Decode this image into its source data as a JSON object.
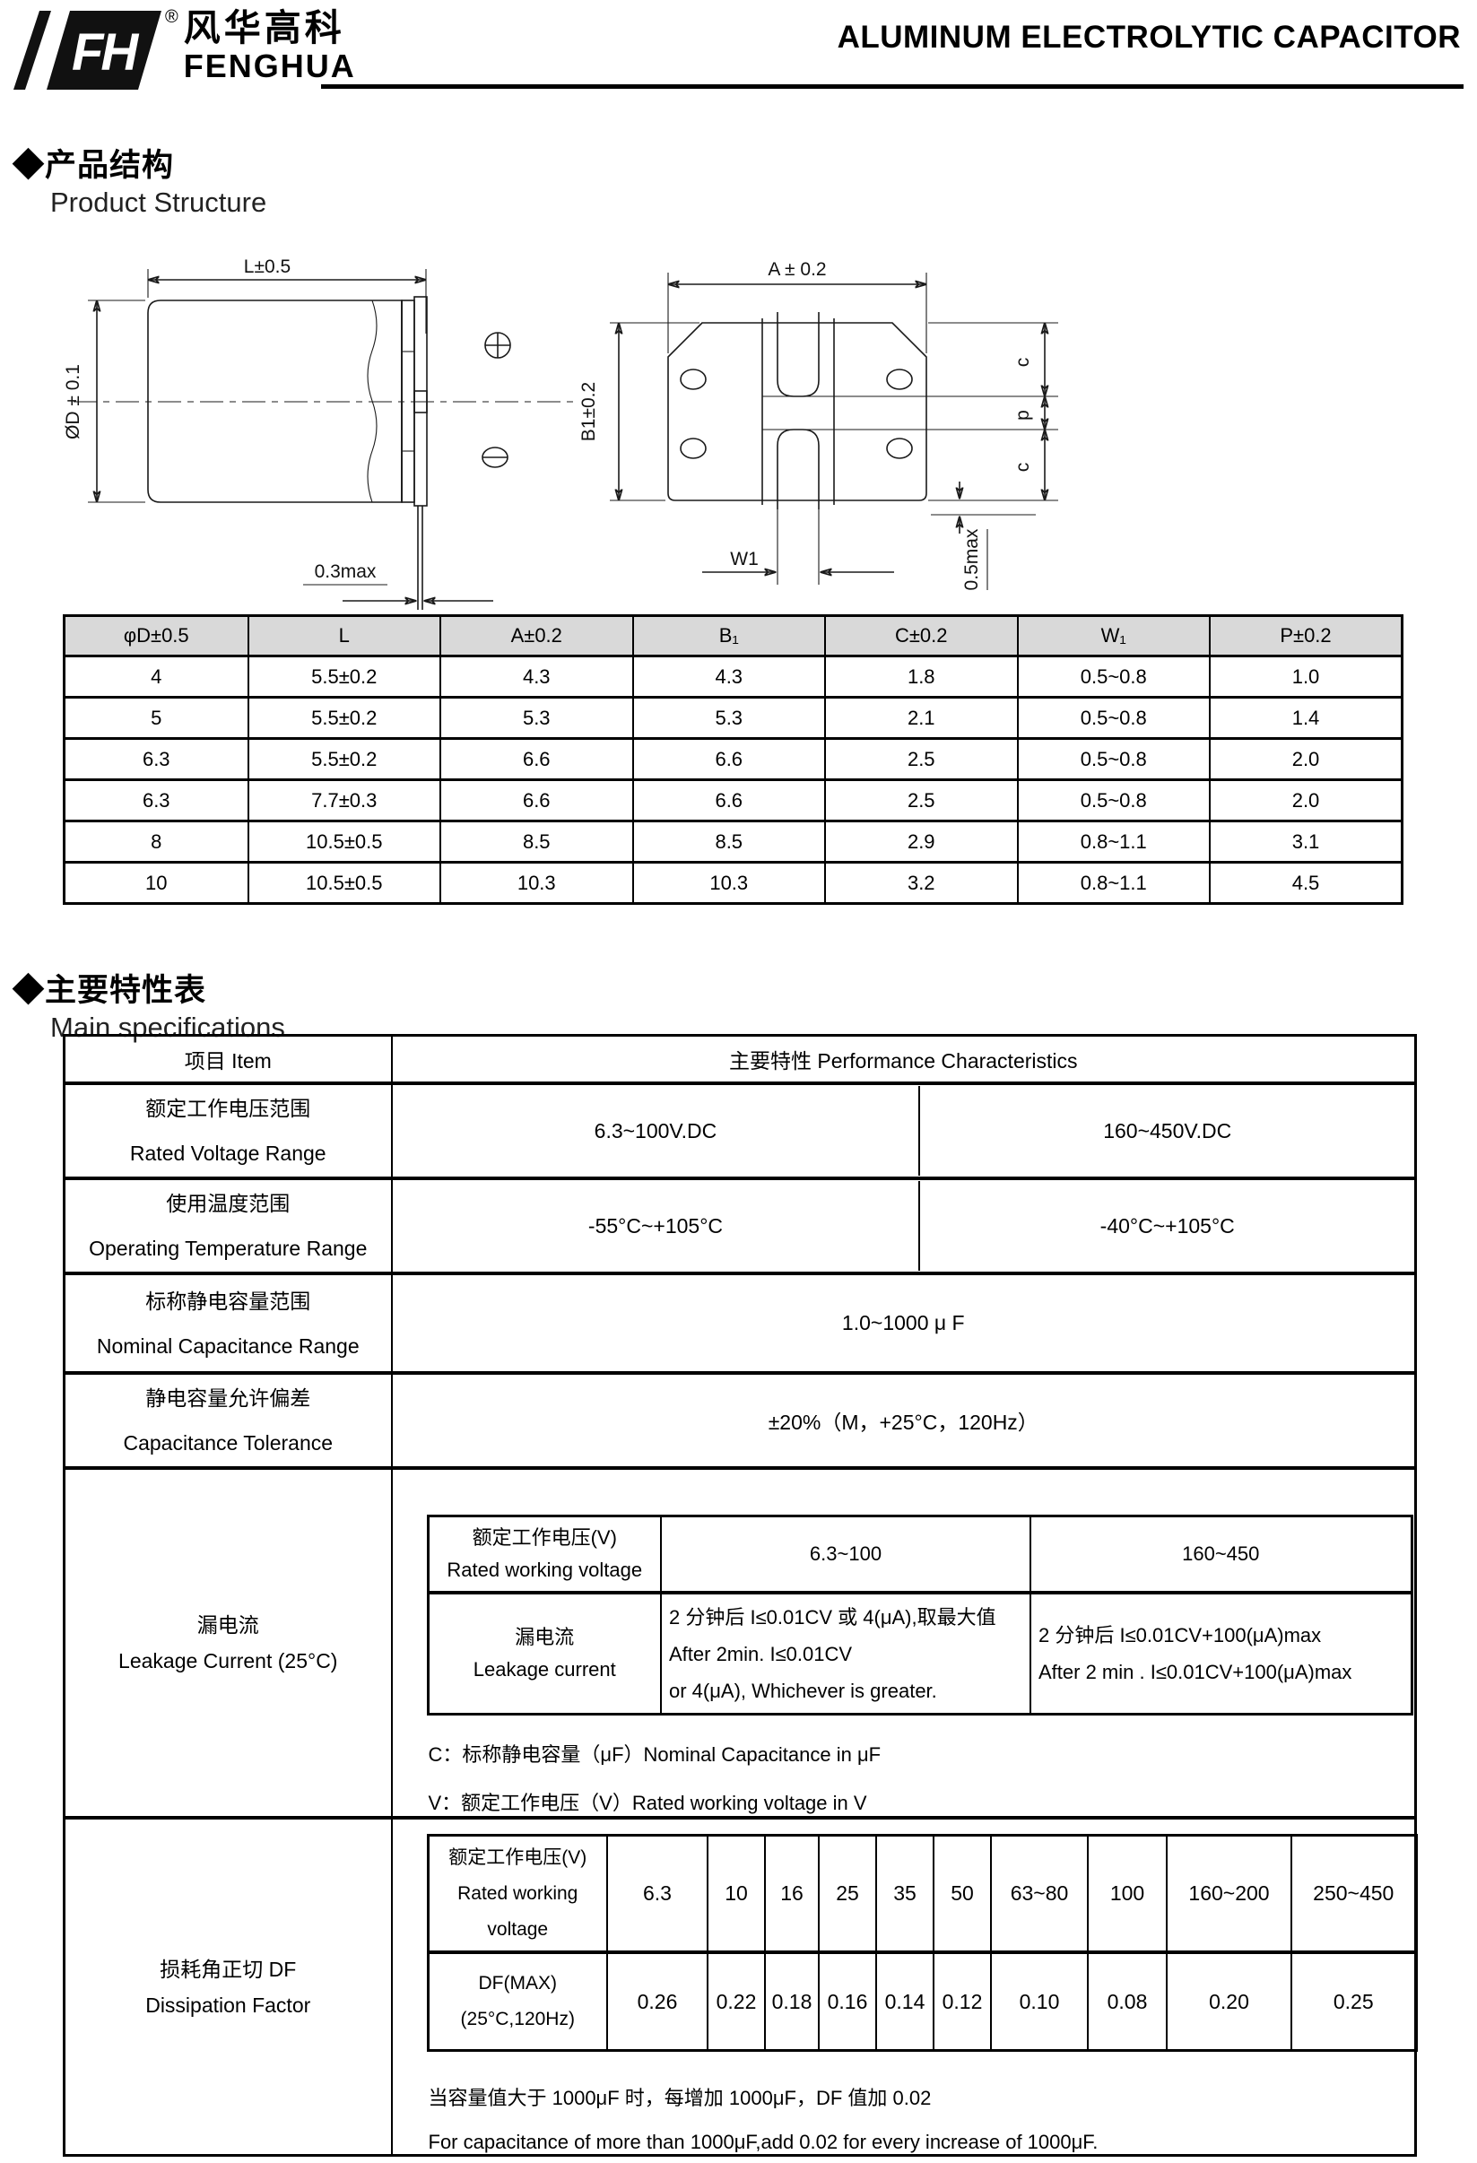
{
  "header": {
    "logo_cn": "风华高科",
    "logo_en": "FENGHUA",
    "reg_mark": "®",
    "title": "ALUMINUM ELECTROLYTIC CAPACITOR"
  },
  "product_structure": {
    "heading_cn": "◆产品结构",
    "heading_en": "Product Structure",
    "drawing": {
      "len": "L±0.5",
      "dia": "ØD ± 0.1",
      "lead_max": "0.3max",
      "a": "A ± 0.2",
      "b1": "B1±0.2",
      "w1": "W1",
      "c_top": "c",
      "p": "p",
      "c_bottom": "c",
      "standoff_max": "0.5max"
    },
    "dim_table": {
      "headers": [
        "φD±0.5",
        "L",
        "A±0.2",
        "B₁",
        "C±0.2",
        "W₁",
        "P±0.2"
      ],
      "rows": [
        [
          "4",
          "5.5±0.2",
          "4.3",
          "4.3",
          "1.8",
          "0.5~0.8",
          "1.0"
        ],
        [
          "5",
          "5.5±0.2",
          "5.3",
          "5.3",
          "2.1",
          "0.5~0.8",
          "1.4"
        ],
        [
          "6.3",
          "5.5±0.2",
          "6.6",
          "6.6",
          "2.5",
          "0.5~0.8",
          "2.0"
        ],
        [
          "6.3",
          "7.7±0.3",
          "6.6",
          "6.6",
          "2.5",
          "0.5~0.8",
          "2.0"
        ],
        [
          "8",
          "10.5±0.5",
          "8.5",
          "8.5",
          "2.9",
          "0.8~1.1",
          "3.1"
        ],
        [
          "10",
          "10.5±0.5",
          "10.3",
          "10.3",
          "3.2",
          "0.8~1.1",
          "4.5"
        ]
      ]
    }
  },
  "main_specs": {
    "heading_cn": "◆主要特性表",
    "heading_en": "Main specifications",
    "item_header": "项目 Item",
    "perf_header": "主要特性 Performance Characteristics",
    "rated_voltage": {
      "label": "额定工作电压范围\nRated Voltage Range",
      "low": "6.3~100V.DC",
      "high": "160~450V.DC"
    },
    "temperature": {
      "label": "使用温度范围\nOperating Temperature Range",
      "low": "-55°C~+105°C",
      "high": "-40°C~+105°C"
    },
    "capacitance": {
      "label": "标称静电容量范围\nNominal Capacitance Range",
      "value": "1.0~1000 μ F"
    },
    "tolerance": {
      "label": "静电容量允许偏差\nCapacitance Tolerance",
      "value": "±20%（M，+25°C，120Hz）"
    },
    "leakage": {
      "label": "漏电流\nLeakage Current (25°C)",
      "table": {
        "header": "额定工作电压(V)\nRated working voltage",
        "col_low": "6.3~100",
        "col_high": "160~450",
        "row_label": "漏电流\nLeakage current",
        "low_text": "2 分钟后 I≤0.01CV 或 4(μA),取最大值\nAfter 2min. I≤0.01CV\nor 4(μA), Whichever is greater.",
        "high_text": "2 分钟后 I≤0.01CV+100(μA)max\nAfter 2 min . I≤0.01CV+100(μA)max"
      },
      "note_c": "C：标称静电容量（μF）Nominal Capacitance in μF",
      "note_v": "V：额定工作电压（V）Rated working voltage in V"
    },
    "df": {
      "label": "损耗角正切 DF\nDissipation Factor",
      "table": {
        "header": "额定工作电压(V)\nRated working\nvoltage",
        "voltages": [
          "6.3",
          "10",
          "16",
          "25",
          "35",
          "50",
          "63~80",
          "100",
          "160~200",
          "250~450"
        ],
        "df_label": "DF(MAX)\n(25°C,120Hz)",
        "values": [
          "0.26",
          "0.22",
          "0.18",
          "0.16",
          "0.14",
          "0.12",
          "0.10",
          "0.08",
          "0.20",
          "0.25"
        ]
      },
      "note_cn": "当容量值大于 1000μF 时，每增加 1000μF，DF 值加 0.02",
      "note_en": "For capacitance of more than 1000μF,add 0.02 for every increase of 1000μF."
    }
  }
}
